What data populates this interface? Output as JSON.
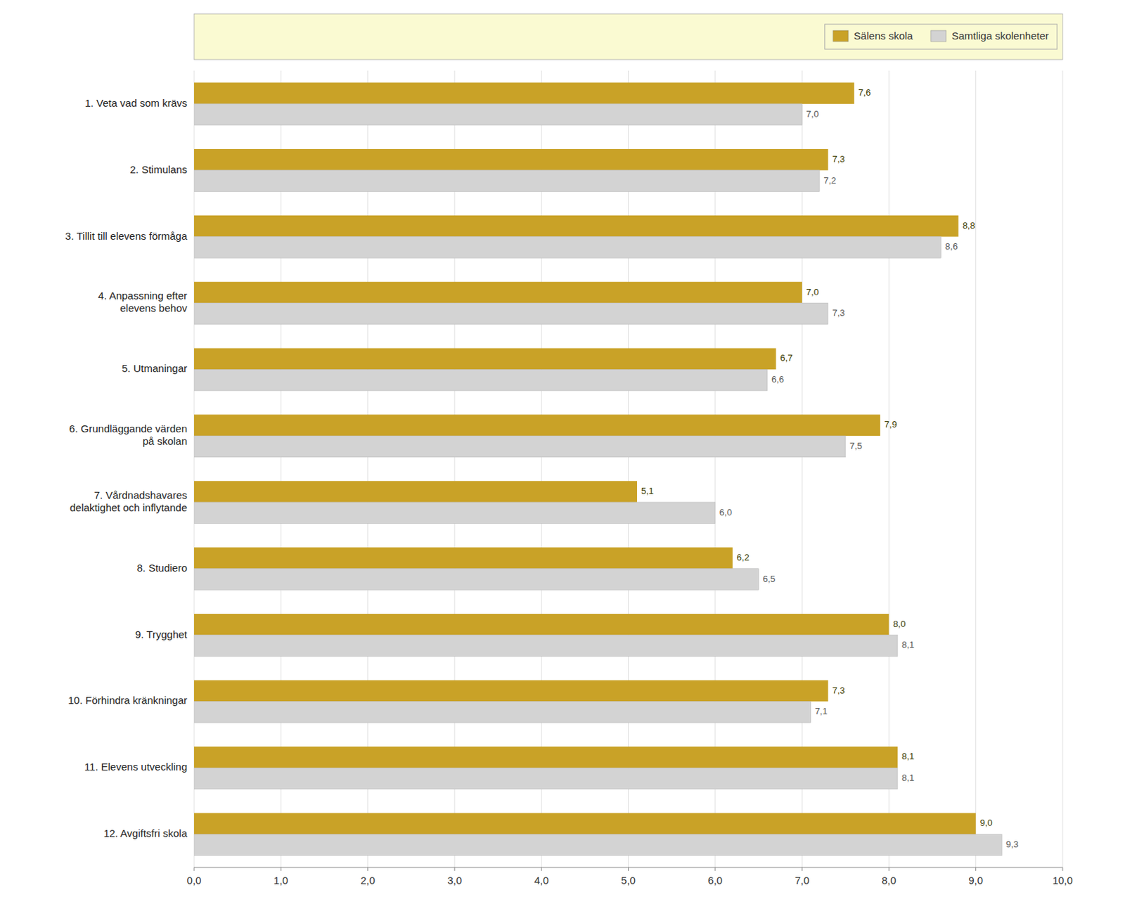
{
  "chart_data": {
    "type": "bar",
    "orientation": "horizontal",
    "categories": [
      "1. Veta vad som krävs",
      "2. Stimulans",
      "3. Tillit till elevens förmåga",
      "4. Anpassning efter\nelevens behov",
      "5. Utmaningar",
      "6. Grundläggande värden\npå skolan",
      "7. Vårdnadshavares\ndelaktighet och inflytande",
      "8. Studiero",
      "9. Trygghet",
      "10. Förhindra kränkningar",
      "11. Elevens utveckling",
      "12. Avgiftsfri skola"
    ],
    "series": [
      {
        "name": "Sälens skola",
        "color": "#C9A227",
        "values": [
          7.6,
          7.3,
          8.8,
          7.0,
          6.7,
          7.9,
          5.1,
          6.2,
          8.0,
          7.3,
          8.1,
          9.0
        ],
        "value_labels": [
          "7,6",
          "7,3",
          "8,8",
          "7,0",
          "6,7",
          "7,9",
          "5,1",
          "6,2",
          "8,0",
          "7,3",
          "8,1",
          "9,0"
        ]
      },
      {
        "name": "Samtliga skolenheter",
        "color": "#D3D3D3",
        "values": [
          7.0,
          7.2,
          8.6,
          7.3,
          6.6,
          7.5,
          6.0,
          6.5,
          8.1,
          7.1,
          8.1,
          9.3
        ],
        "value_labels": [
          "7,0",
          "7,2",
          "8,6",
          "7,3",
          "6,6",
          "7,5",
          "6,0",
          "6,5",
          "8,1",
          "7,1",
          "8,1",
          "9,3"
        ]
      }
    ],
    "xlim": [
      0,
      10
    ],
    "xticks": [
      {
        "value": 0,
        "label": "0,0"
      },
      {
        "value": 1,
        "label": "1,0"
      },
      {
        "value": 2,
        "label": "2,0"
      },
      {
        "value": 3,
        "label": "3,0"
      },
      {
        "value": 4,
        "label": "4,0"
      },
      {
        "value": 5,
        "label": "5,0"
      },
      {
        "value": 6,
        "label": "6,0"
      },
      {
        "value": 7,
        "label": "7,0"
      },
      {
        "value": 8,
        "label": "8,0"
      },
      {
        "value": 9,
        "label": "9,0"
      },
      {
        "value": 10,
        "label": "10,0"
      }
    ],
    "grid": true,
    "legend": "upper right",
    "data_labels": true
  }
}
